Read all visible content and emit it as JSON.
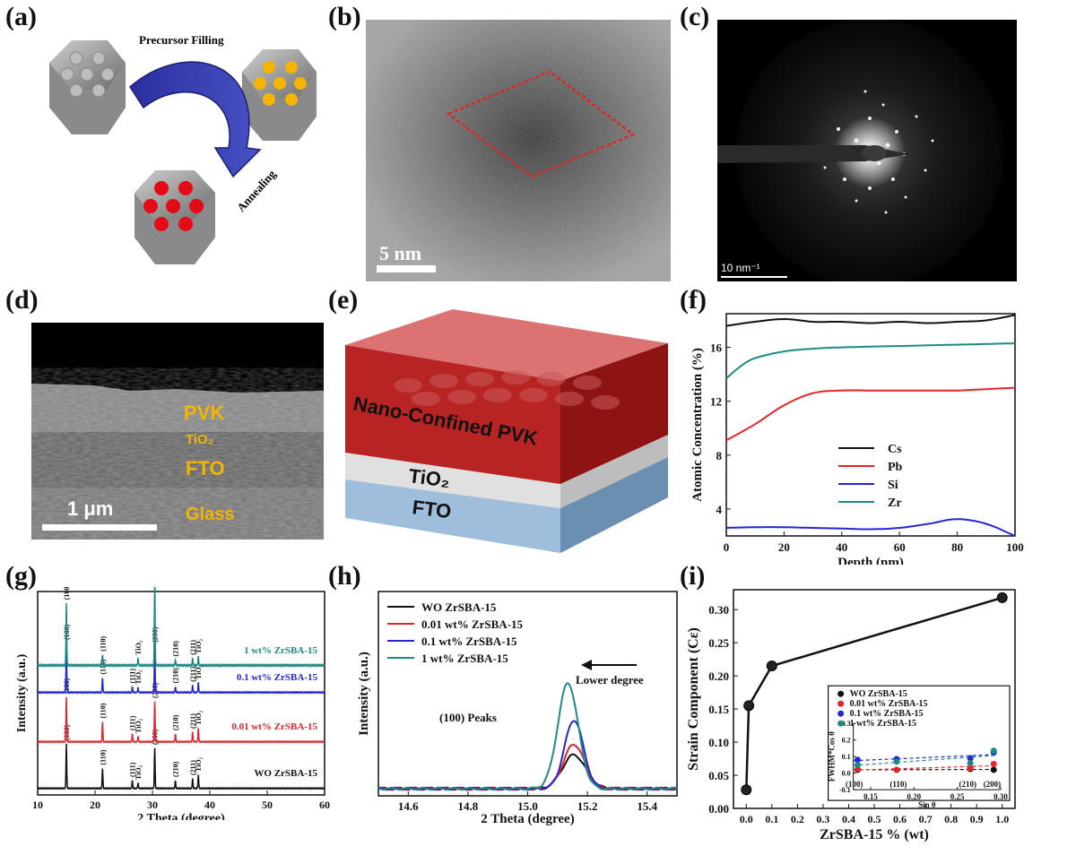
{
  "labels": {
    "a": "(a)",
    "b": "(b)",
    "c": "(c)",
    "d": "(d)",
    "e": "(e)",
    "f": "(f)",
    "g": "(g)",
    "h": "(h)",
    "i": "(i)"
  },
  "panel_a": {
    "precursor": "Precursor Filling",
    "annealing": "Annealing"
  },
  "panel_b": {
    "scale": "5 nm"
  },
  "panel_c": {
    "scale": "10 nm⁻¹"
  },
  "panel_d": {
    "layers": [
      "PVK",
      "TiO₂",
      "FTO",
      "Glass"
    ],
    "scale": "1 μm"
  },
  "panel_e": {
    "top": "Nano-Confined PVK",
    "mid": "TiO₂",
    "bottom": "FTO"
  },
  "colors": {
    "black": "#111111",
    "red": "#e5242a",
    "blue": "#2525d5",
    "teal": "#1e8a82"
  },
  "chart_data": [
    {
      "id": "f",
      "type": "line",
      "xlabel": "Depth (nm)",
      "ylabel": "Atomic Concentration (%)",
      "xlim": [
        0,
        100
      ],
      "ylim": [
        2,
        18.5
      ],
      "xticks": [
        0,
        20,
        40,
        60,
        80,
        100
      ],
      "yticks": [
        4,
        8,
        12,
        16
      ],
      "legend_position": "center-right",
      "series": [
        {
          "name": "Cs",
          "color": "#111111",
          "x": [
            0,
            10,
            20,
            30,
            40,
            50,
            60,
            70,
            80,
            90,
            100
          ],
          "y": [
            17.6,
            17.9,
            18.1,
            17.9,
            17.9,
            17.8,
            17.9,
            17.8,
            17.9,
            18.0,
            18.4
          ]
        },
        {
          "name": "Pb",
          "color": "#e5242a",
          "x": [
            0,
            10,
            20,
            30,
            40,
            50,
            60,
            70,
            80,
            90,
            100
          ],
          "y": [
            9.1,
            10.3,
            11.7,
            12.6,
            12.8,
            12.8,
            12.8,
            12.8,
            12.8,
            12.9,
            13.0
          ]
        },
        {
          "name": "Si",
          "color": "#2525d5",
          "x": [
            0,
            10,
            20,
            30,
            40,
            50,
            60,
            70,
            80,
            90,
            100
          ],
          "y": [
            2.6,
            2.65,
            2.65,
            2.6,
            2.55,
            2.5,
            2.6,
            2.9,
            3.25,
            2.9,
            2.0
          ]
        },
        {
          "name": "Zr",
          "color": "#1e8a82",
          "x": [
            0,
            5,
            10,
            20,
            30,
            40,
            60,
            80,
            100
          ],
          "y": [
            13.7,
            14.6,
            15.2,
            15.7,
            15.9,
            16.0,
            16.1,
            16.2,
            16.3
          ]
        }
      ]
    },
    {
      "id": "g",
      "type": "line",
      "xlabel": "2 Theta (degree)",
      "ylabel": "Intensity (a.u.)",
      "xlim": [
        10,
        60
      ],
      "xticks": [
        10,
        20,
        30,
        40,
        50,
        60
      ],
      "series": [
        {
          "name": "WO ZrSBA-15",
          "color": "#111111",
          "peak_scale": 0.55,
          "peaks": [
            {
              "x": 15.0,
              "h": 1.0,
              "label": "(100)"
            },
            {
              "x": 21.3,
              "h": 0.45,
              "label": "(110)"
            },
            {
              "x": 26.5,
              "h": 0.18,
              "label": "(111)"
            },
            {
              "x": 27.5,
              "h": 0.12,
              "label": "TiO₂"
            },
            {
              "x": 30.4,
              "h": 0.9,
              "label": "(200)"
            },
            {
              "x": 34.0,
              "h": 0.18,
              "label": "(210)"
            },
            {
              "x": 37.0,
              "h": 0.22,
              "label": "(211)"
            },
            {
              "x": 38.0,
              "h": 0.3,
              "label": "TiO₂"
            }
          ]
        },
        {
          "name": "0.01 wt% ZrSBA-15",
          "color": "#e5242a",
          "peak_scale": 0.55,
          "peaks": [
            {
              "x": 15.0,
              "h": 1.0,
              "label": "(100)"
            },
            {
              "x": 21.3,
              "h": 0.45,
              "label": "(110)"
            },
            {
              "x": 26.5,
              "h": 0.18,
              "label": "(111)"
            },
            {
              "x": 27.5,
              "h": 0.12,
              "label": "TiO₂"
            },
            {
              "x": 30.4,
              "h": 0.9,
              "label": "(200)"
            },
            {
              "x": 34.0,
              "h": 0.18,
              "label": "(210)"
            },
            {
              "x": 37.0,
              "h": 0.22,
              "label": "(211)"
            },
            {
              "x": 38.0,
              "h": 0.3,
              "label": "TiO₂"
            }
          ]
        },
        {
          "name": "0.1 wt% ZrSBA-15",
          "color": "#2525d5",
          "peak_scale": 0.7,
          "peaks": [
            {
              "x": 15.0,
              "h": 1.0,
              "label": "(100)"
            },
            {
              "x": 21.3,
              "h": 0.3,
              "label": "(110)"
            },
            {
              "x": 26.5,
              "h": 0.12,
              "label": "(111)"
            },
            {
              "x": 27.5,
              "h": 0.1,
              "label": "TiO₂"
            },
            {
              "x": 30.4,
              "h": 0.95,
              "label": "(200)"
            },
            {
              "x": 34.0,
              "h": 0.12,
              "label": "(210)"
            },
            {
              "x": 37.0,
              "h": 0.15,
              "label": "(211)"
            },
            {
              "x": 38.0,
              "h": 0.2,
              "label": "TiO₂"
            }
          ]
        },
        {
          "name": "1 wt% ZrSBA-15",
          "color": "#1e8a82",
          "peak_scale": 1.0,
          "peaks": [
            {
              "x": 15.0,
              "h": 0.85,
              "label": "(100)"
            },
            {
              "x": 21.3,
              "h": 0.15,
              "label": "(110)"
            },
            {
              "x": 27.5,
              "h": 0.1,
              "label": "TiO₂"
            },
            {
              "x": 30.4,
              "h": 1.15,
              "label": "(200)"
            },
            {
              "x": 34.0,
              "h": 0.08,
              "label": "(210)"
            },
            {
              "x": 37.0,
              "h": 0.1,
              "label": "(211)"
            },
            {
              "x": 38.0,
              "h": 0.12,
              "label": "TiO₂"
            }
          ]
        }
      ]
    },
    {
      "id": "h",
      "type": "line",
      "xlabel": "2 Theta (degree)",
      "ylabel": "Intensity (a.u.)",
      "xlim": [
        14.5,
        15.5
      ],
      "xticks": [
        14.6,
        14.8,
        15.0,
        15.2,
        15.4
      ],
      "annotation": "(100) Peaks",
      "arrow_label": "Lower degree",
      "legend_position": "top-left",
      "series": [
        {
          "name": "WO ZrSBA-15",
          "color": "#111111",
          "center": 15.155,
          "height": 0.32,
          "width": 0.055
        },
        {
          "name": "0.01 wt% ZrSBA-15",
          "color": "#e5242a",
          "center": 15.155,
          "height": 0.42,
          "width": 0.05
        },
        {
          "name": "0.1 wt% ZrSBA-15",
          "color": "#2525d5",
          "center": 15.155,
          "height": 0.65,
          "width": 0.045
        },
        {
          "name": "1 wt% ZrSBA-15",
          "color": "#1e8a82",
          "center": 15.135,
          "height": 1.0,
          "width": 0.048
        }
      ]
    },
    {
      "id": "i",
      "type": "line",
      "xlabel": "ZrSBA-15 % (wt)",
      "ylabel": "Strain Component (Cε)",
      "xlim": [
        -0.05,
        1.05
      ],
      "ylim": [
        0,
        0.33
      ],
      "xticks": [
        0.0,
        0.1,
        0.2,
        0.3,
        0.4,
        0.5,
        0.6,
        0.7,
        0.8,
        0.9,
        1.0
      ],
      "yticks": [
        0.0,
        0.05,
        0.1,
        0.15,
        0.2,
        0.25,
        0.3
      ],
      "x": [
        0.0,
        0.01,
        0.1,
        1.0
      ],
      "y": [
        0.028,
        0.155,
        0.215,
        0.318
      ],
      "inset": {
        "type": "scatter",
        "xlabel": "Sin θ",
        "ylabel": "FWHM*Cos θ",
        "xlim": [
          0.13,
          0.3
        ],
        "ylim": [
          -0.1,
          0.3
        ],
        "xticks": [
          0.15,
          0.2,
          0.25,
          0.3
        ],
        "yticks": [
          -0.1,
          0.0,
          0.1,
          0.2,
          0.3
        ],
        "peak_labels": [
          {
            "x": 0.131,
            "label": "(100)"
          },
          {
            "x": 0.182,
            "label": "(110)"
          },
          {
            "x": 0.262,
            "label": "(210)"
          },
          {
            "x": 0.29,
            "label": "(200)"
          }
        ],
        "legend_position": "top",
        "series": [
          {
            "name": "WO ZrSBA-15",
            "color": "#111111",
            "x": [
              0.135,
              0.18,
              0.265,
              0.292
            ],
            "y": [
              0.02,
              0.02,
              0.025,
              0.02
            ]
          },
          {
            "name": "0.01 wt% ZrSBA-15",
            "color": "#e5242a",
            "x": [
              0.135,
              0.18,
              0.265,
              0.292
            ],
            "y": [
              0.025,
              0.02,
              0.03,
              0.055
            ]
          },
          {
            "name": "0.1 wt% ZrSBA-15",
            "color": "#2525d5",
            "x": [
              0.135,
              0.18,
              0.265,
              0.292
            ],
            "y": [
              0.08,
              0.085,
              0.09,
              0.125
            ]
          },
          {
            "name": "1 wt% ZrSBA-15",
            "color": "#1e8a82",
            "x": [
              0.135,
              0.18,
              0.265,
              0.292
            ],
            "y": [
              0.05,
              0.07,
              0.06,
              0.135
            ]
          }
        ]
      }
    }
  ]
}
